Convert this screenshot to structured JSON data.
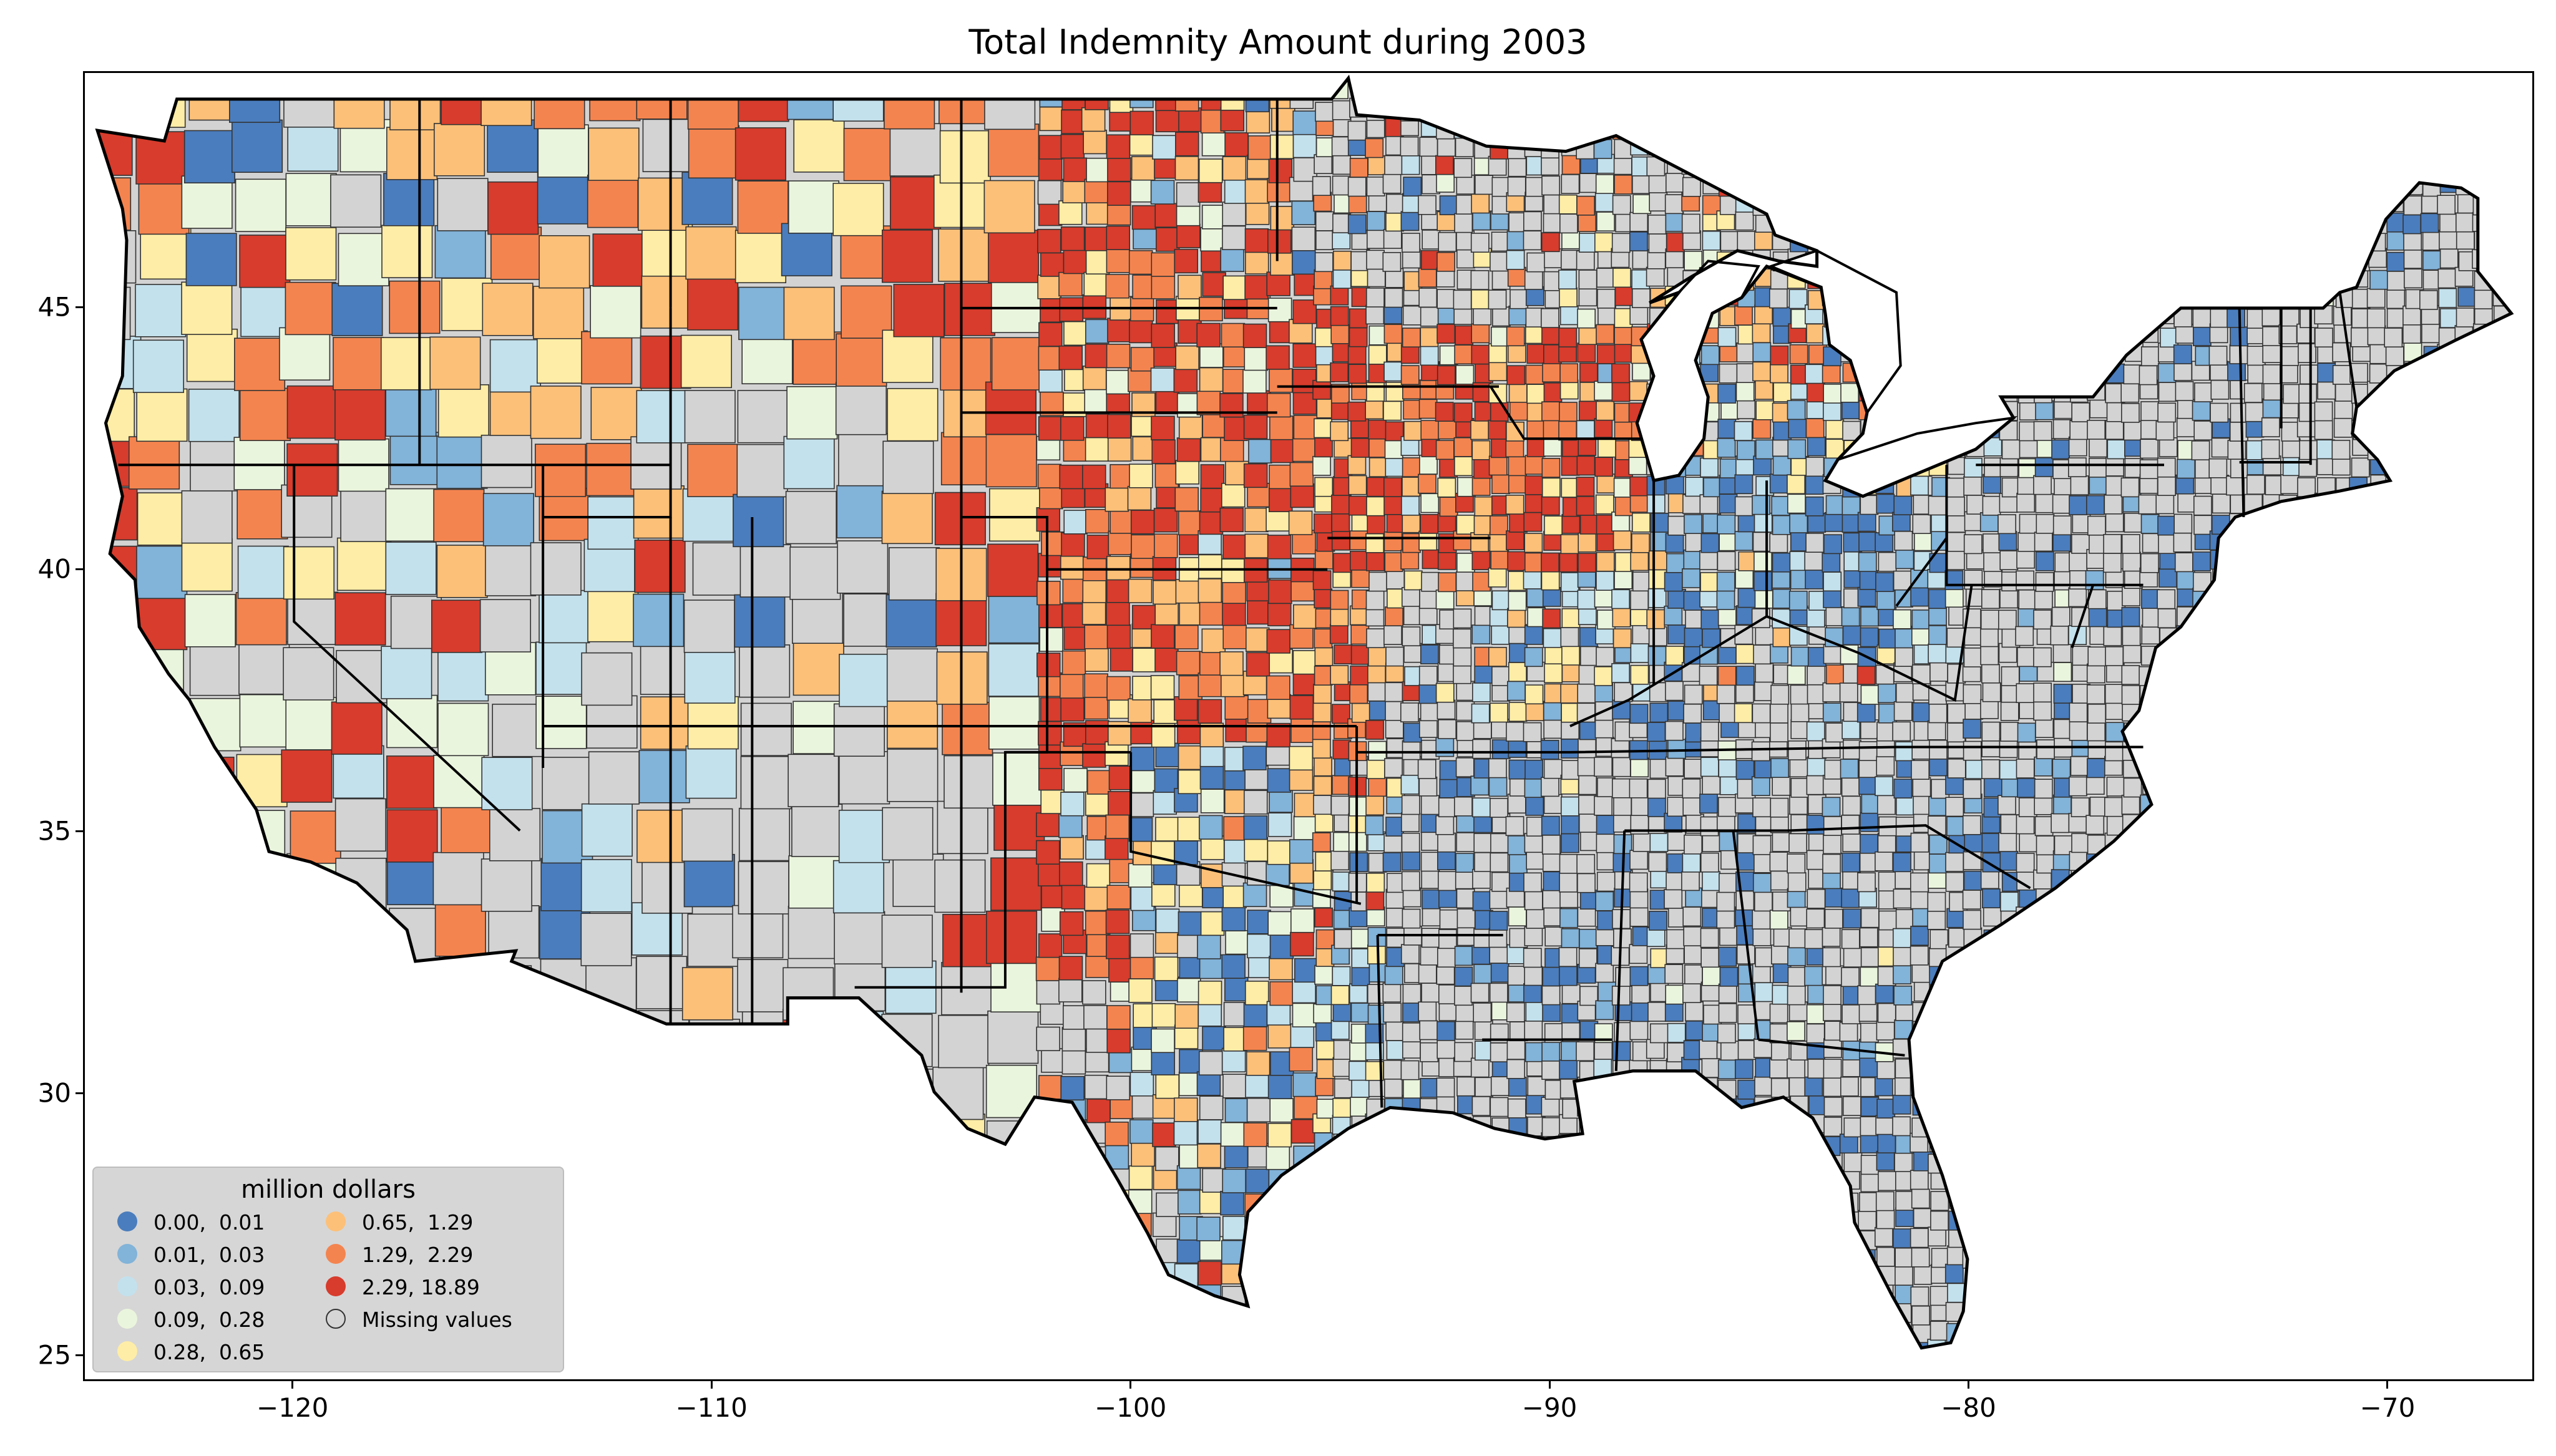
{
  "title": "Total Indemnity Amount during 2003",
  "x_ticks": [
    {
      "value": -120,
      "label": "−120"
    },
    {
      "value": -110,
      "label": "−110"
    },
    {
      "value": -100,
      "label": "−100"
    },
    {
      "value": -90,
      "label": "−90"
    },
    {
      "value": -80,
      "label": "−80"
    },
    {
      "value": -70,
      "label": "−70"
    }
  ],
  "y_ticks": [
    {
      "value": 45,
      "label": "45"
    },
    {
      "value": 40,
      "label": "40"
    },
    {
      "value": 35,
      "label": "35"
    },
    {
      "value": 30,
      "label": "30"
    },
    {
      "value": 25,
      "label": "25"
    }
  ],
  "legend": {
    "title": "million dollars",
    "items": [
      {
        "label": "0.00,  0.01",
        "color": "#4a7dbd"
      },
      {
        "label": "0.01,  0.03",
        "color": "#82b3d9"
      },
      {
        "label": "0.03,  0.09",
        "color": "#c3e1ed"
      },
      {
        "label": "0.09,  0.28",
        "color": "#eaf5dd"
      },
      {
        "label": "0.28,  0.65",
        "color": "#feeda6"
      },
      {
        "label": "0.65,  1.29",
        "color": "#fcc078"
      },
      {
        "label": "1.29,  2.29",
        "color": "#f4844f"
      },
      {
        "label": "2.29, 18.89",
        "color": "#d73c2c"
      },
      {
        "label": "Missing values",
        "color": "#d3d3d3"
      }
    ]
  },
  "map": {
    "type": "choropleth",
    "region": "Contiguous United States by county",
    "lon_range": [
      -125,
      -66.5
    ],
    "lat_range": [
      24.5,
      49.5
    ],
    "missing_color": "#d3d3d3"
  }
}
